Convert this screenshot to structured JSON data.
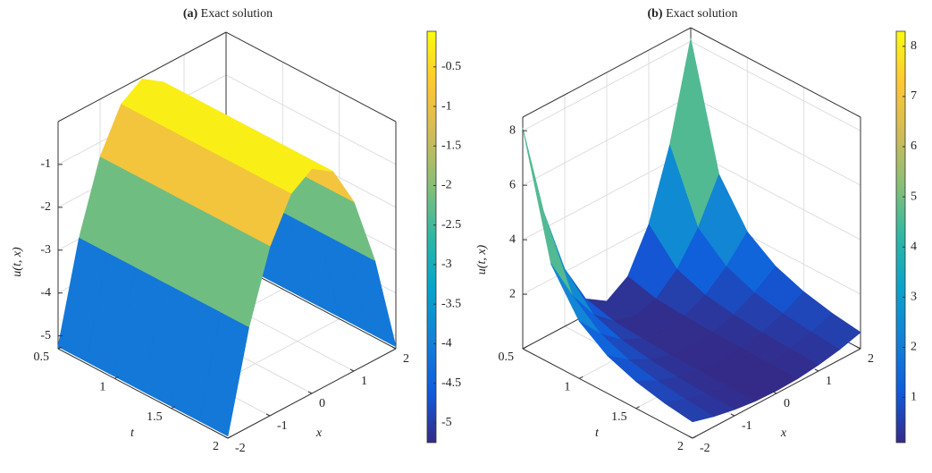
{
  "chart_data": [
    {
      "type": "surface",
      "label": "(a)",
      "title": "Exact solution",
      "colormap": "parula",
      "t_label": "t",
      "x_label": "x",
      "z_label": "u(t, x)",
      "t": [
        0.5,
        0.75,
        1,
        1.25,
        1.5,
        1.75,
        2
      ],
      "x": [
        -2,
        -1.5,
        -1,
        -0.5,
        0,
        0.5,
        1,
        1.5,
        2
      ],
      "z": [
        [
          -5.25,
          -2.98,
          -1.35,
          -0.38,
          -0.05,
          -0.38,
          -1.35,
          -2.98,
          -5.25
        ],
        [
          -5.25,
          -2.98,
          -1.35,
          -0.38,
          -0.05,
          -0.38,
          -1.35,
          -2.98,
          -5.25
        ],
        [
          -5.25,
          -2.98,
          -1.35,
          -0.38,
          -0.05,
          -0.38,
          -1.35,
          -2.98,
          -5.25
        ],
        [
          -5.25,
          -2.98,
          -1.35,
          -0.38,
          -0.05,
          -0.38,
          -1.35,
          -2.98,
          -5.25
        ],
        [
          -5.25,
          -2.98,
          -1.35,
          -0.38,
          -0.05,
          -0.38,
          -1.35,
          -2.98,
          -5.25
        ],
        [
          -5.25,
          -2.98,
          -1.35,
          -0.38,
          -0.05,
          -0.38,
          -1.35,
          -2.98,
          -5.25
        ],
        [
          -5.25,
          -2.98,
          -1.35,
          -0.38,
          -0.05,
          -0.38,
          -1.35,
          -2.98,
          -5.25
        ]
      ],
      "tlim": [
        0.5,
        2
      ],
      "tticks": [
        0.5,
        1,
        1.5,
        2
      ],
      "xlim": [
        -2,
        2
      ],
      "xticks": [
        -2,
        -1,
        0,
        1,
        2
      ],
      "zlim": [
        -5.3,
        0
      ],
      "zticks": [
        -5,
        -4,
        -3,
        -2,
        -1
      ],
      "clim": [
        -5.25,
        -0.05
      ],
      "cticks": [
        -5,
        -4.5,
        -4,
        -3.5,
        -3,
        -2.5,
        -2,
        -1.5,
        -1,
        -0.5
      ],
      "grid": true
    },
    {
      "type": "surface",
      "label": "(b)",
      "title": "Exact solution",
      "colormap": "parula",
      "t_label": "t",
      "x_label": "x",
      "z_label": "u(t, x)",
      "t": [
        0.5,
        0.75,
        1,
        1.25,
        1.5,
        1.75,
        2
      ],
      "x": [
        -2,
        -1.5,
        -1,
        -0.5,
        0,
        0.5,
        1,
        1.5,
        2
      ],
      "z": [
        [
          8.1,
          4.6,
          2.1,
          0.6,
          0.1,
          0.6,
          2.1,
          4.6,
          8.1
        ],
        [
          3.66,
          2.1,
          0.99,
          0.32,
          0.1,
          0.32,
          0.99,
          2.1,
          3.66
        ],
        [
          2.1,
          1.23,
          0.6,
          0.23,
          0.1,
          0.23,
          0.6,
          1.23,
          2.1
        ],
        [
          1.38,
          0.82,
          0.42,
          0.18,
          0.1,
          0.18,
          0.42,
          0.82,
          1.38
        ],
        [
          0.99,
          0.6,
          0.32,
          0.16,
          0.1,
          0.16,
          0.32,
          0.6,
          0.99
        ],
        [
          0.75,
          0.47,
          0.26,
          0.14,
          0.1,
          0.14,
          0.26,
          0.47,
          0.75
        ],
        [
          0.6,
          0.38,
          0.23,
          0.13,
          0.1,
          0.13,
          0.23,
          0.38,
          0.6
        ]
      ],
      "tlim": [
        0.5,
        2
      ],
      "tticks": [
        0.5,
        1,
        1.5,
        2
      ],
      "xlim": [
        -2,
        2
      ],
      "xticks": [
        -2,
        -1,
        0,
        1,
        2
      ],
      "zlim": [
        0,
        8.5
      ],
      "zticks": [
        2,
        4,
        6,
        8
      ],
      "clim": [
        0.1,
        8.3
      ],
      "cticks": [
        1,
        2,
        3,
        4,
        5,
        6,
        7,
        8
      ],
      "grid": true
    }
  ]
}
